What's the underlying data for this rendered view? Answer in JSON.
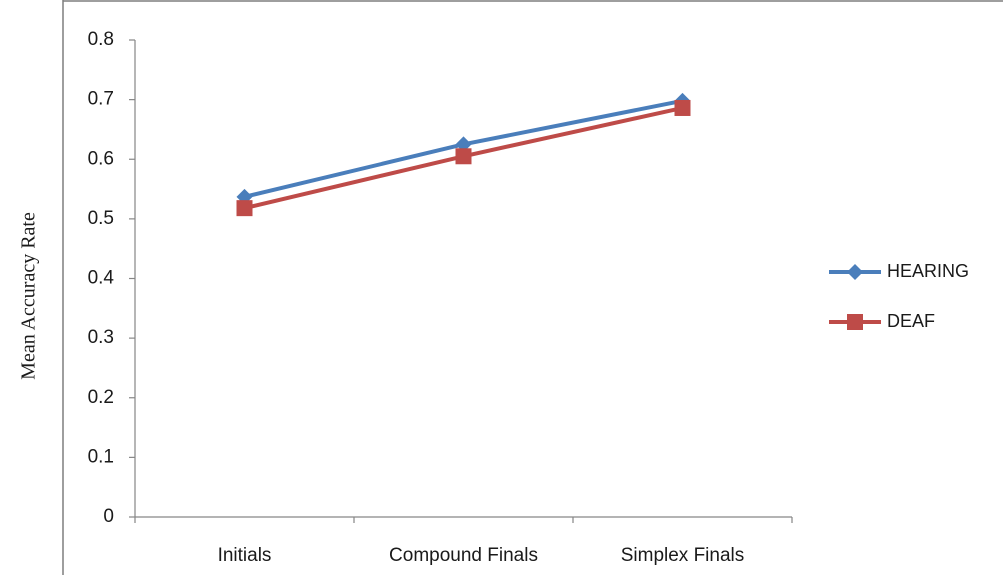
{
  "chart_data": {
    "type": "line",
    "title": "",
    "xlabel": "",
    "ylabel": "Mean Accuracy Rate",
    "categories": [
      "Initials",
      "Compound Finals",
      "Simplex Finals"
    ],
    "ylim": [
      0,
      0.8
    ],
    "yticks": [
      "0",
      "0.1",
      "0.2",
      "0.3",
      "0.4",
      "0.5",
      "0.6",
      "0.7",
      "0.8"
    ],
    "ytick_values": [
      0,
      0.1,
      0.2,
      0.3,
      0.4,
      0.5,
      0.6,
      0.7,
      0.8
    ],
    "grid": false,
    "legend_position": "right",
    "series": [
      {
        "name": "HEARING",
        "values": [
          0.537,
          0.625,
          0.698
        ],
        "color": "#4a7ebb",
        "marker": "diamond"
      },
      {
        "name": "DEAF",
        "values": [
          0.518,
          0.605,
          0.686
        ],
        "color": "#be4b48",
        "marker": "square"
      }
    ]
  }
}
